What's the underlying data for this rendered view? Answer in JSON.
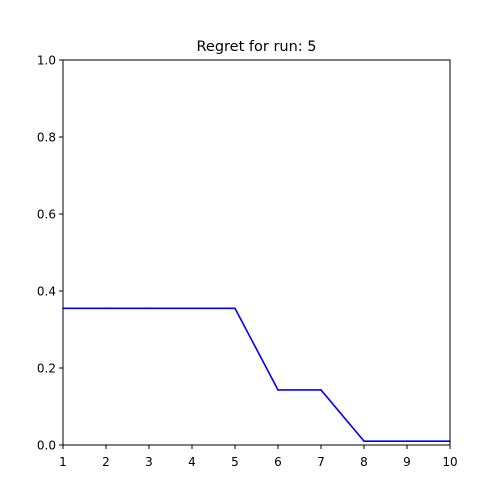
{
  "chart_data": {
    "type": "line",
    "title": "Regret for run: 5",
    "xlabel": "",
    "ylabel": "",
    "x": [
      1,
      2,
      3,
      4,
      5,
      6,
      7,
      8,
      9,
      10
    ],
    "series": [
      {
        "values": [
          0.355,
          0.355,
          0.355,
          0.355,
          0.355,
          0.143,
          0.143,
          0.01,
          0.01,
          0.01
        ],
        "color": "#0000ff"
      }
    ],
    "xlim": [
      1,
      10
    ],
    "ylim": [
      0,
      1.0
    ],
    "xticks": [
      "1",
      "2",
      "3",
      "4",
      "5",
      "6",
      "7",
      "8",
      "9",
      "10"
    ],
    "yticks": [
      "0.0",
      "0.2",
      "0.4",
      "0.6",
      "0.8",
      "1.0"
    ],
    "grid": false,
    "legend": false
  }
}
